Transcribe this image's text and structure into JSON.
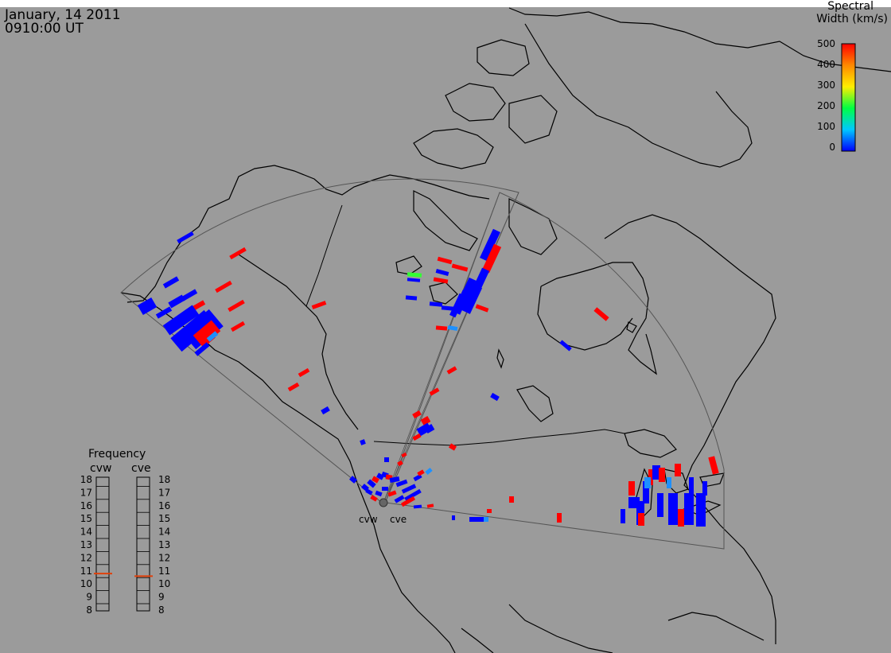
{
  "header": {
    "date": "January, 14 2011",
    "time": "0910:00 UT"
  },
  "colorbar": {
    "title_line1": "Spectral",
    "title_line2": "Width (km/s)",
    "ticks": [
      "500",
      "400",
      "300",
      "200",
      "100",
      "0"
    ],
    "colors": [
      "#0000ff",
      "#00c8ff",
      "#00ff66",
      "#ffee00",
      "#ff8800",
      "#ff0000"
    ]
  },
  "frequency_panel": {
    "title": "Frequency",
    "radar_labels": [
      "cvw",
      "cve"
    ],
    "scale": [
      "18",
      "17",
      "16",
      "15",
      "14",
      "13",
      "12",
      "11",
      "10",
      "9",
      "8"
    ],
    "current_mhz": {
      "cvw": 10.8,
      "cve": 10.6
    },
    "marker_color": "#e0400a"
  },
  "radars": {
    "labels": [
      "cvw",
      "cve"
    ]
  }
}
